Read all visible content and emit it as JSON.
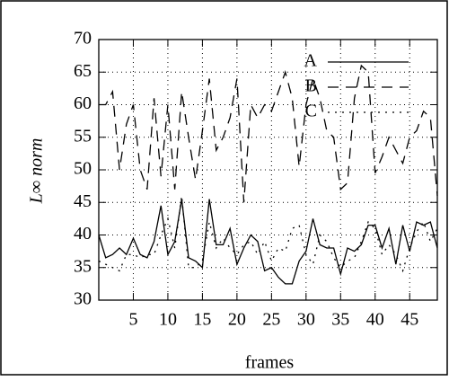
{
  "chart_data": {
    "type": "line",
    "xlabel": "frames",
    "ylabel": "L∞ norm",
    "x": [
      0,
      1,
      2,
      3,
      4,
      5,
      6,
      7,
      8,
      9,
      10,
      11,
      12,
      13,
      14,
      15,
      16,
      17,
      18,
      19,
      20,
      21,
      22,
      23,
      24,
      25,
      26,
      27,
      28,
      29,
      30,
      31,
      32,
      33,
      34,
      35,
      36,
      37,
      38,
      39,
      40,
      41,
      42,
      43,
      44,
      45,
      46,
      47,
      48,
      49
    ],
    "series": [
      {
        "name": "A",
        "color": "#000000",
        "dash": "solid",
        "values": [
          40,
          36.5,
          37,
          38,
          37,
          39.5,
          37,
          36.5,
          39,
          44.5,
          37,
          39,
          45.5,
          36.5,
          36,
          35,
          45.5,
          38.5,
          38.5,
          41,
          35.5,
          38,
          40,
          39,
          34.5,
          35,
          33.5,
          32.5,
          32.5,
          36,
          37.5,
          42.5,
          38.5,
          38,
          38,
          34,
          38,
          37.5,
          38.5,
          41.5,
          41.5,
          38,
          41,
          35.5,
          41.5,
          37.5,
          42,
          41.5,
          42,
          38
        ]
      },
      {
        "name": "B",
        "color": "#000000",
        "dash": "dashed",
        "values": [
          60,
          60,
          62,
          50,
          57,
          60,
          50,
          47,
          61,
          49,
          60,
          47,
          62,
          55,
          48.5,
          56,
          64,
          53,
          55,
          58,
          64,
          45,
          60,
          58,
          60,
          59,
          62,
          65,
          61,
          50.5,
          60,
          64,
          61,
          56,
          55,
          47,
          48,
          61,
          66,
          65,
          49.5,
          52,
          55,
          53,
          51,
          55,
          56,
          59,
          58,
          46
        ]
      },
      {
        "name": "C",
        "color": "#000000",
        "dash": "dotted",
        "values": [
          36,
          35.5,
          35,
          34.5,
          37,
          37,
          36.5,
          37,
          37,
          40,
          42.5,
          38,
          46,
          35,
          35,
          36,
          42,
          38,
          39.5,
          38,
          37,
          38.5,
          39,
          37,
          39,
          36,
          38,
          37.5,
          41,
          41.5,
          37,
          35.5,
          40,
          39,
          36.5,
          35,
          36,
          36.5,
          39,
          42,
          41,
          37,
          38.5,
          37,
          34.5,
          38,
          40.5,
          42,
          39,
          41
        ]
      }
    ],
    "xlim": [
      0,
      49
    ],
    "xticks": [
      5,
      10,
      15,
      20,
      25,
      30,
      35,
      40,
      45
    ],
    "ylim": [
      30,
      70
    ],
    "yticks": [
      30,
      35,
      40,
      45,
      50,
      55,
      60,
      65,
      70
    ],
    "grid": true,
    "legend": "top-right"
  }
}
